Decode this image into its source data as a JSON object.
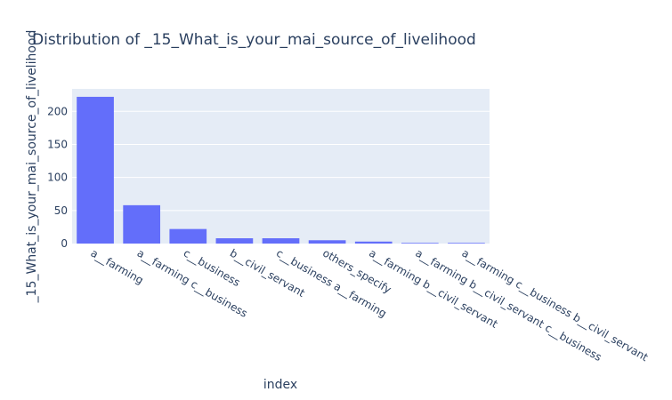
{
  "chart_data": {
    "type": "bar",
    "title": "Distribution of _15_What_is_your_mai_source_of_livelihood",
    "xlabel": "index",
    "ylabel": "_15_What_is_your_mai_source_of_livelihood",
    "categories": [
      "a__farming",
      "a__farming c__business",
      "c__business",
      "b__civil_servant",
      "c__business a__farming",
      "others_specify",
      "a__farming b__civil_servant",
      "a__farming b__civil_servant c__business",
      "a__farming c__business b__civil_servant"
    ],
    "values": [
      222,
      58,
      22,
      8,
      8,
      5,
      3,
      1,
      1
    ],
    "ylim": [
      0,
      234
    ],
    "yticks": [
      0,
      50,
      100,
      150,
      200
    ],
    "bar_color": "#636efa",
    "plot_background": "#e5ecf6",
    "grid": true
  }
}
